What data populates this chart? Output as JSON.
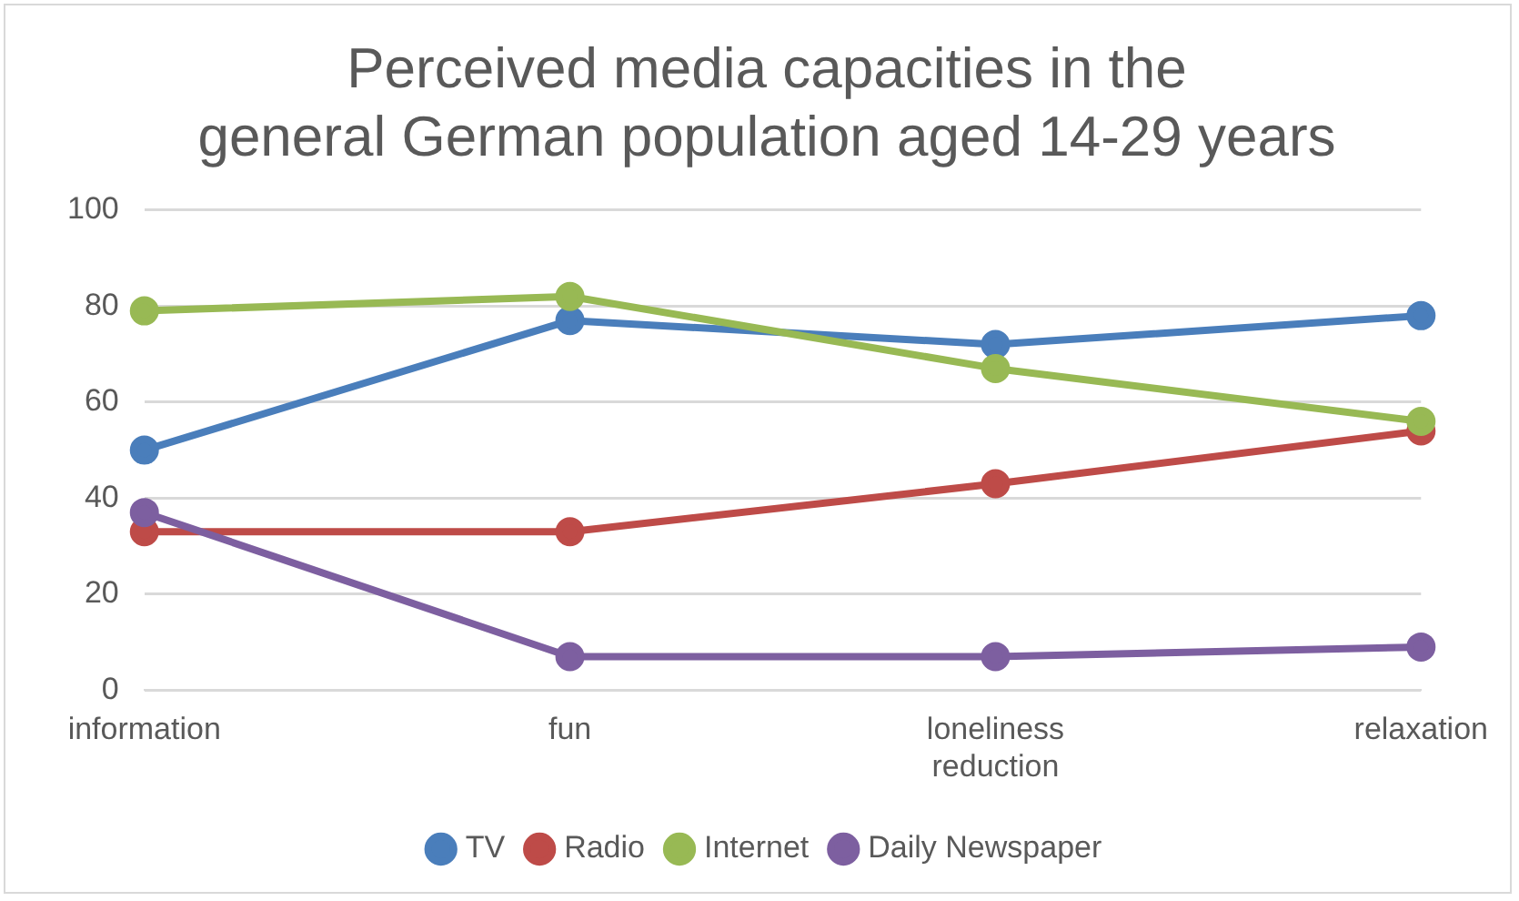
{
  "chart_data": {
    "type": "line",
    "title": "Perceived media capacities in the general German population aged 14-29 years",
    "categories": [
      "information",
      "fun",
      "loneliness reduction",
      "relaxation"
    ],
    "series": [
      {
        "name": "TV",
        "color": "#4a7ebb",
        "values": [
          50,
          77,
          72,
          78
        ]
      },
      {
        "name": "Radio",
        "color": "#be4b48",
        "values": [
          33,
          33,
          43,
          54
        ]
      },
      {
        "name": "Internet",
        "color": "#98b954",
        "values": [
          79,
          82,
          67,
          56
        ]
      },
      {
        "name": "Daily Newspaper",
        "color": "#7d5fa0",
        "values": [
          37,
          7,
          7,
          9
        ]
      }
    ],
    "ylim": [
      0,
      100
    ],
    "yticks": [
      0,
      20,
      40,
      60,
      80,
      100
    ],
    "grid": "y",
    "legend": "bottom",
    "marker": "circle",
    "line_style": "solid"
  }
}
